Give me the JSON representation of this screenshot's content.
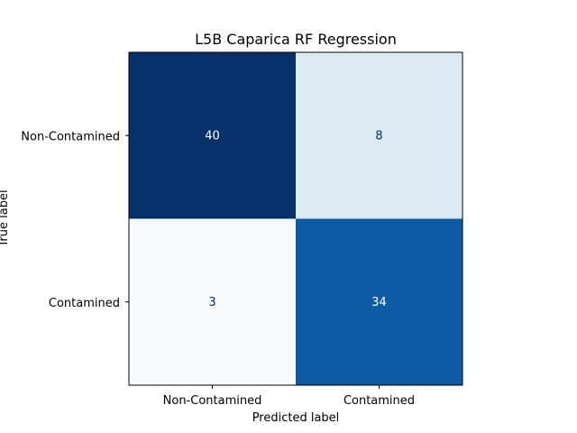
{
  "chart_data": {
    "type": "heatmap",
    "title": "L5B Caparica RF Regression",
    "xlabel": "Predicted label",
    "ylabel": "True label",
    "x_categories": [
      "Non-Contamined",
      "Contamined"
    ],
    "y_categories": [
      "Non-Contamined",
      "Contamined"
    ],
    "matrix": [
      [
        40,
        8
      ],
      [
        3,
        34
      ]
    ],
    "colormap": "Blues",
    "value_range": [
      3,
      40
    ],
    "colors": {
      "low": "#f7fbff",
      "high": "#08306b",
      "text_on_dark": "#ffffff",
      "text_on_light": "#08306b"
    }
  }
}
